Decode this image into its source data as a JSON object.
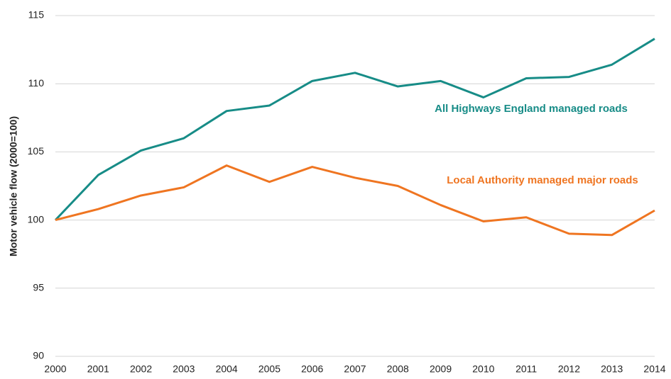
{
  "chart_data": {
    "type": "line",
    "y_label": "Motor vehicle flow (2000=100)",
    "x": [
      2000,
      2001,
      2002,
      2003,
      2004,
      2005,
      2006,
      2007,
      2008,
      2009,
      2010,
      2011,
      2012,
      2013,
      2014
    ],
    "series": [
      {
        "name": "All Highways England managed roads",
        "color": "#178c87",
        "values": [
          100,
          103.3,
          105.1,
          106.0,
          108.0,
          108.4,
          110.2,
          110.8,
          109.8,
          110.2,
          109.0,
          110.4,
          110.5,
          111.4,
          113.3
        ]
      },
      {
        "name": "Local Authority managed major roads",
        "color": "#ef7521",
        "values": [
          100,
          100.8,
          101.8,
          102.4,
          104.0,
          102.8,
          103.9,
          103.1,
          102.5,
          101.1,
          99.9,
          100.2,
          99.0,
          98.9,
          100.7
        ]
      }
    ],
    "xlim": [
      2000,
      2014
    ],
    "xticks": [
      2000,
      2001,
      2002,
      2003,
      2004,
      2005,
      2006,
      2007,
      2008,
      2009,
      2010,
      2011,
      2012,
      2013,
      2014
    ],
    "ylim": [
      90,
      115
    ],
    "yticks": [
      90,
      95,
      100,
      105,
      110,
      115
    ],
    "grid": true
  }
}
